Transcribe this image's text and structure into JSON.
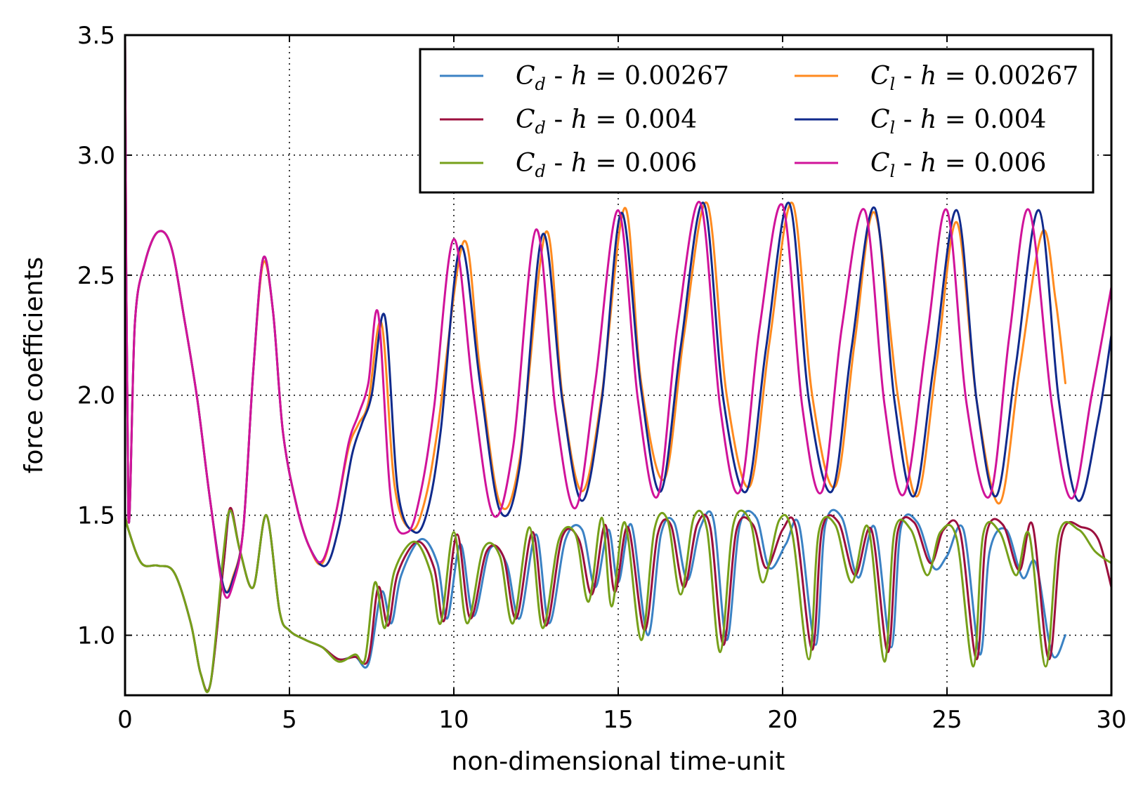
{
  "chart_data": {
    "type": "line",
    "xlabel": "non-dimensional time-unit",
    "ylabel": "force coefficients",
    "xlim": [
      0,
      30
    ],
    "ylim": [
      0.75,
      3.5
    ],
    "xticks": [
      "0",
      "5",
      "10",
      "15",
      "20",
      "25",
      "30"
    ],
    "yticks": [
      "1.0",
      "1.5",
      "2.0",
      "2.5",
      "3.0",
      "3.5"
    ],
    "grid": true,
    "legend_position": "upper-right",
    "series": [
      {
        "name": "C_d - h = 0.00267",
        "legend": {
          "symbol": "C",
          "sub": "d",
          "rest": " - ",
          "hvar": "h",
          "value": " = 0.00267"
        },
        "color": "#3b82c4",
        "x": [
          0.0,
          0.1,
          0.5,
          1.0,
          1.5,
          2.0,
          2.3,
          2.6,
          3.0,
          3.2,
          3.5,
          3.9,
          4.3,
          4.7,
          5.0,
          5.5,
          6.0,
          6.5,
          7.0,
          7.4,
          7.8,
          8.1,
          8.4,
          9.0,
          9.5,
          9.8,
          10.2,
          10.6,
          11.1,
          11.6,
          12.0,
          12.5,
          12.9,
          13.4,
          13.9,
          14.3,
          14.7,
          15.0,
          15.4,
          15.9,
          16.3,
          16.7,
          17.1,
          17.5,
          17.9,
          18.3,
          18.7,
          19.2,
          19.6,
          20.1,
          20.5,
          21.0,
          21.3,
          21.8,
          22.3,
          22.8,
          23.3,
          23.6,
          24.1,
          24.6,
          25.0,
          25.5,
          26.0,
          26.3,
          26.8,
          27.3,
          27.7,
          28.2,
          28.6
        ],
        "y": [
          1.5,
          1.44,
          1.3,
          1.29,
          1.26,
          1.05,
          0.84,
          0.8,
          1.3,
          1.52,
          1.35,
          1.2,
          1.5,
          1.1,
          1.02,
          0.98,
          0.95,
          0.9,
          0.91,
          0.88,
          1.18,
          1.05,
          1.25,
          1.4,
          1.3,
          1.07,
          1.38,
          1.08,
          1.36,
          1.3,
          1.07,
          1.42,
          1.05,
          1.4,
          1.44,
          1.2,
          1.44,
          1.22,
          1.46,
          1.0,
          1.42,
          1.47,
          1.23,
          1.45,
          1.48,
          0.98,
          1.46,
          1.49,
          1.28,
          1.38,
          1.46,
          0.96,
          1.46,
          1.49,
          1.24,
          1.45,
          0.95,
          1.45,
          1.47,
          1.28,
          1.33,
          1.44,
          0.92,
          1.35,
          1.44,
          1.24,
          1.3,
          0.92,
          1.0
        ]
      },
      {
        "name": "C_d - h = 0.004",
        "legend": {
          "symbol": "C",
          "sub": "d",
          "rest": " - ",
          "hvar": "h",
          "value": " = 0.004"
        },
        "color": "#9c0f3e",
        "x": [
          0.0,
          0.1,
          0.5,
          1.0,
          1.5,
          2.0,
          2.3,
          2.6,
          3.0,
          3.2,
          3.5,
          3.9,
          4.3,
          4.7,
          5.0,
          5.5,
          6.0,
          6.5,
          7.0,
          7.4,
          7.7,
          8.0,
          8.3,
          8.9,
          9.4,
          9.7,
          10.1,
          10.5,
          11.0,
          11.5,
          11.9,
          12.4,
          12.8,
          13.3,
          13.8,
          14.2,
          14.6,
          14.9,
          15.3,
          15.8,
          16.2,
          16.6,
          17.0,
          17.4,
          17.8,
          18.2,
          18.6,
          19.1,
          19.5,
          20.0,
          20.4,
          20.9,
          21.2,
          21.7,
          22.2,
          22.7,
          23.2,
          23.5,
          24.0,
          24.5,
          24.9,
          25.4,
          25.9,
          26.2,
          26.7,
          27.2,
          27.6,
          28.1,
          28.5,
          29.1,
          29.6,
          30.0
        ],
        "y": [
          1.5,
          1.44,
          1.3,
          1.29,
          1.26,
          1.05,
          0.84,
          0.8,
          1.3,
          1.53,
          1.35,
          1.2,
          1.5,
          1.1,
          1.02,
          0.98,
          0.95,
          0.9,
          0.91,
          0.9,
          1.2,
          1.04,
          1.26,
          1.39,
          1.28,
          1.06,
          1.42,
          1.07,
          1.35,
          1.33,
          1.07,
          1.43,
          1.04,
          1.41,
          1.4,
          1.17,
          1.46,
          1.18,
          1.45,
          1.02,
          1.42,
          1.46,
          1.2,
          1.46,
          1.45,
          0.96,
          1.44,
          1.46,
          1.28,
          1.44,
          1.45,
          0.94,
          1.44,
          1.47,
          1.25,
          1.44,
          0.93,
          1.43,
          1.47,
          1.3,
          1.44,
          1.43,
          0.9,
          1.42,
          1.46,
          1.27,
          1.46,
          0.9,
          1.42,
          1.45,
          1.4,
          1.2
        ]
      },
      {
        "name": "C_d - h = 0.006",
        "legend": {
          "symbol": "C",
          "sub": "d",
          "rest": " - ",
          "hvar": "h",
          "value": " = 0.006"
        },
        "color": "#76a01a",
        "x": [
          0.0,
          0.1,
          0.5,
          1.0,
          1.5,
          2.0,
          2.3,
          2.6,
          3.0,
          3.2,
          3.5,
          3.9,
          4.3,
          4.7,
          5.0,
          5.5,
          6.0,
          6.5,
          7.0,
          7.3,
          7.6,
          7.9,
          8.2,
          8.8,
          9.3,
          9.6,
          10.0,
          10.4,
          10.9,
          11.4,
          11.8,
          12.3,
          12.7,
          13.2,
          13.7,
          14.1,
          14.5,
          14.8,
          15.2,
          15.7,
          16.1,
          16.5,
          16.9,
          17.3,
          17.7,
          18.1,
          18.5,
          19.0,
          19.4,
          19.9,
          20.3,
          20.8,
          21.1,
          21.6,
          22.1,
          22.6,
          23.1,
          23.4,
          23.9,
          24.4,
          24.8,
          25.3,
          25.8,
          26.1,
          26.6,
          27.1,
          27.5,
          28.0,
          28.4,
          29.0,
          29.5,
          30.0
        ],
        "y": [
          1.5,
          1.44,
          1.3,
          1.29,
          1.26,
          1.05,
          0.84,
          0.8,
          1.35,
          1.52,
          1.35,
          1.2,
          1.5,
          1.1,
          1.02,
          0.98,
          0.95,
          0.89,
          0.92,
          0.9,
          1.22,
          1.03,
          1.27,
          1.39,
          1.26,
          1.05,
          1.43,
          1.05,
          1.36,
          1.33,
          1.05,
          1.45,
          1.03,
          1.4,
          1.42,
          1.14,
          1.49,
          1.12,
          1.47,
          0.98,
          1.44,
          1.48,
          1.17,
          1.49,
          1.44,
          0.93,
          1.46,
          1.48,
          1.22,
          1.48,
          1.42,
          0.9,
          1.43,
          1.46,
          1.22,
          1.45,
          0.89,
          1.43,
          1.44,
          1.25,
          1.43,
          1.4,
          0.87,
          1.42,
          1.43,
          1.25,
          1.42,
          0.87,
          1.42,
          1.44,
          1.35,
          1.3
        ]
      },
      {
        "name": "C_l - h = 0.00267",
        "legend": {
          "symbol": "C",
          "sub": "l",
          "rest": " - ",
          "hvar": "h",
          "value": " = 0.00267"
        },
        "color": "#ff8a1f",
        "x": [
          0.0,
          0.1,
          0.3,
          0.6,
          1.0,
          1.4,
          1.8,
          2.2,
          2.6,
          3.0,
          3.3,
          3.6,
          3.9,
          4.2,
          4.5,
          4.8,
          5.2,
          5.6,
          6.0,
          6.4,
          6.8,
          7.1,
          7.4,
          7.8,
          8.2,
          8.7,
          9.1,
          9.5,
          10.3,
          10.8,
          11.4,
          12.0,
          12.8,
          13.3,
          13.9,
          14.5,
          15.2,
          15.7,
          16.4,
          17.0,
          17.7,
          18.3,
          19.0,
          19.6,
          20.3,
          20.9,
          21.6,
          22.2,
          22.8,
          23.5,
          24.1,
          24.7,
          25.3,
          25.9,
          26.6,
          27.2,
          27.9,
          28.3,
          28.6
        ],
        "y": [
          3.5,
          1.5,
          2.3,
          2.55,
          2.68,
          2.62,
          2.32,
          1.98,
          1.55,
          1.2,
          1.25,
          1.45,
          2.1,
          2.55,
          2.35,
          1.85,
          1.55,
          1.37,
          1.3,
          1.5,
          1.78,
          1.88,
          1.97,
          2.3,
          1.62,
          1.44,
          1.55,
          1.85,
          2.64,
          2.1,
          1.55,
          1.73,
          2.68,
          2.0,
          1.6,
          2.0,
          2.78,
          2.05,
          1.65,
          2.25,
          2.8,
          2.0,
          1.62,
          2.22,
          2.8,
          2.0,
          1.62,
          2.23,
          2.76,
          2.0,
          1.58,
          2.15,
          2.72,
          1.98,
          1.55,
          2.1,
          2.68,
          2.4,
          2.05
        ]
      },
      {
        "name": "C_l - h = 0.004",
        "legend": {
          "symbol": "C",
          "sub": "l",
          "rest": " - ",
          "hvar": "h",
          "value": " = 0.004"
        },
        "color": "#102a8c",
        "x": [
          0.0,
          0.1,
          0.3,
          0.6,
          1.0,
          1.4,
          1.8,
          2.2,
          2.6,
          3.0,
          3.3,
          3.6,
          3.9,
          4.2,
          4.5,
          4.8,
          5.2,
          5.6,
          6.1,
          6.5,
          6.9,
          7.2,
          7.5,
          7.9,
          8.3,
          8.8,
          9.2,
          9.6,
          10.2,
          10.8,
          11.4,
          12.0,
          12.7,
          13.3,
          13.9,
          14.5,
          15.1,
          15.7,
          16.3,
          16.9,
          17.6,
          18.2,
          18.9,
          19.5,
          20.2,
          20.8,
          21.5,
          22.1,
          22.8,
          23.4,
          24.0,
          24.6,
          25.3,
          25.9,
          26.5,
          27.1,
          27.8,
          28.4,
          29.0,
          29.6,
          30.0
        ],
        "y": [
          3.5,
          1.5,
          2.3,
          2.55,
          2.68,
          2.62,
          2.32,
          1.98,
          1.55,
          1.2,
          1.24,
          1.45,
          2.1,
          2.57,
          2.35,
          1.85,
          1.55,
          1.37,
          1.29,
          1.45,
          1.75,
          1.88,
          2.0,
          2.33,
          1.6,
          1.43,
          1.52,
          1.85,
          2.62,
          2.05,
          1.52,
          1.7,
          2.67,
          1.98,
          1.56,
          1.98,
          2.76,
          2.02,
          1.6,
          2.2,
          2.8,
          1.98,
          1.6,
          2.2,
          2.8,
          1.98,
          1.6,
          2.2,
          2.78,
          1.98,
          1.58,
          2.13,
          2.77,
          1.98,
          1.58,
          2.13,
          2.77,
          1.98,
          1.56,
          1.9,
          2.25
        ]
      },
      {
        "name": "C_l - h = 0.006",
        "legend": {
          "symbol": "C",
          "sub": "l",
          "rest": " - ",
          "hvar": "h",
          "value": " = 0.006"
        },
        "color": "#d0139a",
        "x": [
          0.0,
          0.1,
          0.3,
          0.6,
          1.0,
          1.4,
          1.8,
          2.2,
          2.6,
          3.0,
          3.3,
          3.6,
          3.9,
          4.2,
          4.5,
          4.8,
          5.2,
          5.6,
          6.0,
          6.4,
          6.8,
          7.1,
          7.4,
          7.7,
          8.1,
          8.6,
          9.0,
          9.4,
          10.0,
          10.6,
          11.2,
          11.8,
          12.5,
          13.1,
          13.7,
          14.3,
          15.0,
          15.6,
          16.2,
          16.8,
          17.5,
          18.1,
          18.7,
          19.3,
          20.0,
          20.6,
          21.2,
          21.8,
          22.5,
          23.1,
          23.7,
          24.4,
          25.0,
          25.6,
          26.3,
          26.9,
          27.5,
          28.2,
          28.8,
          29.4,
          30.0
        ],
        "y": [
          3.5,
          1.5,
          2.3,
          2.55,
          2.68,
          2.62,
          2.32,
          1.98,
          1.55,
          1.18,
          1.22,
          1.45,
          2.1,
          2.57,
          2.35,
          1.85,
          1.55,
          1.37,
          1.31,
          1.5,
          1.8,
          1.92,
          2.05,
          2.34,
          1.55,
          1.43,
          1.6,
          1.95,
          2.65,
          2.0,
          1.5,
          1.78,
          2.69,
          1.93,
          1.53,
          2.05,
          2.77,
          1.98,
          1.58,
          2.28,
          2.8,
          1.95,
          1.6,
          2.28,
          2.79,
          1.95,
          1.6,
          2.28,
          2.77,
          1.96,
          1.59,
          2.25,
          2.77,
          1.96,
          1.58,
          2.25,
          2.77,
          1.95,
          1.57,
          2.0,
          2.45
        ]
      }
    ]
  }
}
